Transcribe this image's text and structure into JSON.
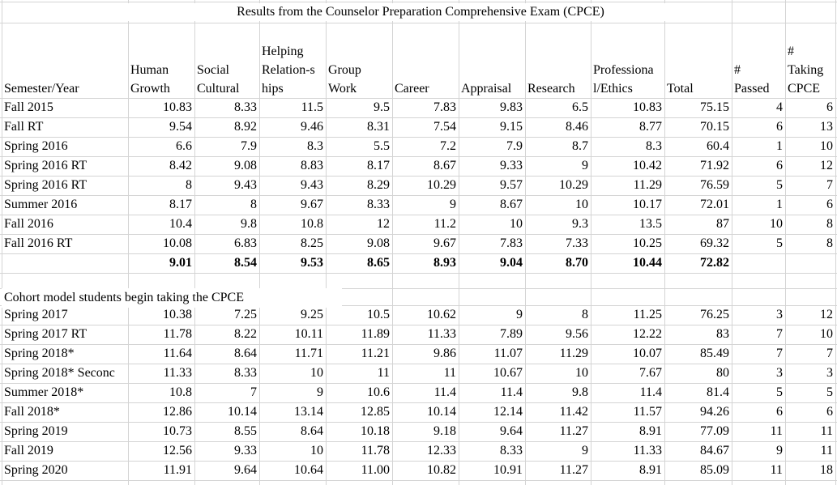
{
  "title": "Results from the Counselor Preparation Comprehensive Exam (CPCE)",
  "columns": [
    {
      "key": "semester",
      "lines": [
        "Semester/Year"
      ]
    },
    {
      "key": "human_growth",
      "lines": [
        "Human",
        "Growth"
      ]
    },
    {
      "key": "social_cultural",
      "lines": [
        "Social",
        "Cultural"
      ]
    },
    {
      "key": "helping_relationships",
      "lines": [
        "Helping",
        "Relation-s",
        "hips"
      ]
    },
    {
      "key": "group_work",
      "lines": [
        "Group",
        "Work"
      ]
    },
    {
      "key": "career",
      "lines": [
        "Career"
      ]
    },
    {
      "key": "appraisal",
      "lines": [
        "Appraisal"
      ]
    },
    {
      "key": "research",
      "lines": [
        "Research"
      ]
    },
    {
      "key": "professional_ethics",
      "lines": [
        "Professiona",
        "l/Ethics"
      ]
    },
    {
      "key": "total",
      "lines": [
        "Total"
      ]
    },
    {
      "key": "passed",
      "lines": [
        "#",
        "Passed"
      ]
    },
    {
      "key": "taking",
      "lines": [
        "#",
        "Taking",
        "CPCE"
      ]
    }
  ],
  "group1_rows": [
    [
      "Fall 2015",
      "10.83",
      "8.33",
      "11.5",
      "9.5",
      "7.83",
      "9.83",
      "6.5",
      "10.83",
      "75.15",
      "4",
      "6"
    ],
    [
      "Fall RT",
      "9.54",
      "8.92",
      "9.46",
      "8.31",
      "7.54",
      "9.15",
      "8.46",
      "8.77",
      "70.15",
      "6",
      "13"
    ],
    [
      "Spring 2016",
      "6.6",
      "7.9",
      "8.3",
      "5.5",
      "7.2",
      "7.9",
      "8.7",
      "8.3",
      "60.4",
      "1",
      "10"
    ],
    [
      "Spring 2016 RT",
      "8.42",
      "9.08",
      "8.83",
      "8.17",
      "8.67",
      "9.33",
      "9",
      "10.42",
      "71.92",
      "6",
      "12"
    ],
    [
      "Spring 2016 RT",
      "8",
      "9.43",
      "9.43",
      "8.29",
      "10.29",
      "9.57",
      "10.29",
      "11.29",
      "76.59",
      "5",
      "7"
    ],
    [
      "Summer 2016",
      "8.17",
      "8",
      "9.67",
      "8.33",
      "9",
      "8.67",
      "10",
      "10.17",
      "72.01",
      "1",
      "6"
    ],
    [
      "Fall 2016",
      "10.4",
      "9.8",
      "10.8",
      "12",
      "11.2",
      "10",
      "9.3",
      "13.5",
      "87",
      "10",
      "8"
    ],
    [
      "Fall 2016 RT",
      "10.08",
      "6.83",
      "8.25",
      "9.08",
      "9.67",
      "7.83",
      "7.33",
      "10.25",
      "69.32",
      "5",
      "8"
    ]
  ],
  "averages": [
    "",
    "9.01",
    "8.54",
    "9.53",
    "8.65",
    "8.93",
    "9.04",
    "8.70",
    "10.44",
    "72.82",
    "",
    ""
  ],
  "cohort_note": "Cohort model students begin taking the CPCE",
  "group2_rows": [
    [
      "Spring 2017",
      "10.38",
      "7.25",
      "9.25",
      "10.5",
      "10.62",
      "9",
      "8",
      "11.25",
      "76.25",
      "3",
      "12"
    ],
    [
      "Spring 2017 RT",
      "11.78",
      "8.22",
      "10.11",
      "11.89",
      "11.33",
      "7.89",
      "9.56",
      "12.22",
      "83",
      "7",
      "10"
    ],
    [
      "Spring 2018*",
      "11.64",
      "8.64",
      "11.71",
      "11.21",
      "9.86",
      "11.07",
      "11.29",
      "10.07",
      "85.49",
      "7",
      "7"
    ],
    [
      "Spring 2018* Seconc",
      "11.33",
      "8.33",
      "10",
      "11",
      "11",
      "10.67",
      "10",
      "7.67",
      "80",
      "3",
      "3"
    ],
    [
      "Summer 2018*",
      "10.8",
      "7",
      "9",
      "10.6",
      "11.4",
      "11.4",
      "9.8",
      "11.4",
      "81.4",
      "5",
      "5"
    ],
    [
      "Fall 2018*",
      "12.86",
      "10.14",
      "13.14",
      "12.85",
      "10.14",
      "12.14",
      "11.42",
      "11.57",
      "94.26",
      "6",
      "6"
    ],
    [
      "Spring 2019",
      "10.73",
      "8.55",
      "8.64",
      "10.18",
      "9.18",
      "9.64",
      "11.27",
      "8.91",
      "77.09",
      "11",
      "11"
    ],
    [
      "Fall 2019",
      "12.56",
      "9.33",
      "10",
      "11.78",
      "12.33",
      "8.33",
      "9",
      "11.33",
      "84.67",
      "9",
      "11"
    ],
    [
      "Spring 2020",
      "11.91",
      "9.64",
      "10.64",
      "11.00",
      "10.82",
      "10.91",
      "11.27",
      "8.91",
      "85.09",
      "11",
      "18"
    ]
  ]
}
